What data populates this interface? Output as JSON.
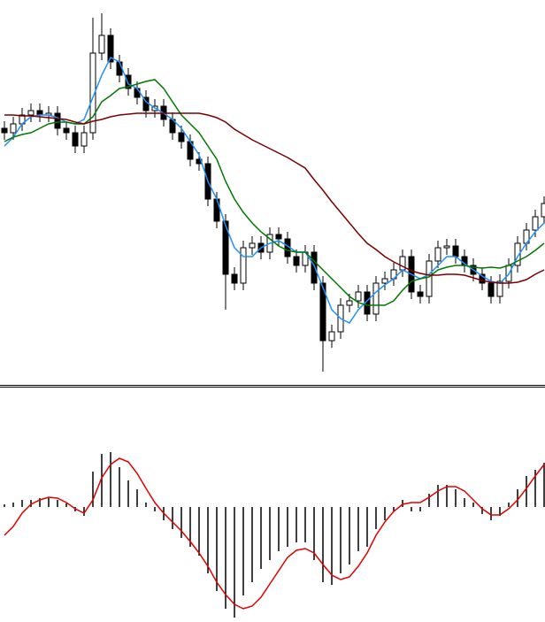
{
  "chart_data": [
    {
      "type": "candlestick",
      "ylim": [
        5,
        440
      ],
      "up_color": "#ffffff",
      "down_color": "#000000",
      "edge_color": "#000000",
      "open": [
        295,
        290,
        300,
        310,
        315,
        310,
        312,
        295,
        290,
        275,
        290,
        380,
        400,
        370,
        355,
        340,
        330,
        315,
        320,
        305,
        290,
        280,
        260,
        255,
        215,
        190,
        130,
        120,
        160,
        165,
        155,
        175,
        170,
        150,
        140,
        155,
        120,
        55,
        65,
        95,
        100,
        110,
        85,
        120,
        125,
        135,
        150,
        110,
        105,
        145,
        160,
        162,
        150,
        140,
        130,
        120,
        105,
        122,
        140,
        165,
        180,
        195
      ],
      "high": [
        303,
        308,
        318,
        323,
        323,
        320,
        320,
        303,
        298,
        298,
        420,
        425,
        408,
        378,
        363,
        348,
        338,
        328,
        328,
        313,
        298,
        288,
        268,
        263,
        223,
        198,
        138,
        168,
        173,
        173,
        183,
        183,
        178,
        158,
        163,
        163,
        128,
        73,
        103,
        108,
        118,
        118,
        128,
        133,
        143,
        158,
        158,
        118,
        153,
        168,
        170,
        170,
        158,
        148,
        138,
        128,
        130,
        148,
        173,
        188,
        203,
        218
      ],
      "low": [
        282,
        282,
        292,
        302,
        302,
        302,
        287,
        282,
        267,
        267,
        282,
        372,
        362,
        347,
        332,
        322,
        307,
        307,
        297,
        282,
        272,
        252,
        247,
        207,
        182,
        90,
        112,
        112,
        152,
        147,
        147,
        162,
        142,
        132,
        132,
        112,
        20,
        47,
        57,
        87,
        92,
        77,
        77,
        112,
        117,
        127,
        102,
        97,
        97,
        137,
        152,
        142,
        132,
        122,
        112,
        97,
        97,
        114,
        132,
        157,
        172,
        187
      ],
      "close": [
        290,
        300,
        310,
        315,
        310,
        312,
        295,
        290,
        275,
        290,
        380,
        400,
        370,
        355,
        340,
        330,
        315,
        320,
        305,
        290,
        280,
        260,
        255,
        215,
        190,
        130,
        120,
        160,
        165,
        155,
        175,
        170,
        150,
        140,
        155,
        120,
        55,
        65,
        95,
        100,
        110,
        85,
        120,
        125,
        135,
        150,
        110,
        105,
        145,
        160,
        162,
        150,
        140,
        130,
        120,
        105,
        122,
        140,
        165,
        180,
        195,
        210
      ],
      "series": [
        {
          "color": "#1e90ff",
          "values": [
            275,
            285,
            300,
            308,
            310,
            310,
            307,
            302,
            300,
            305,
            330,
            355,
            375,
            370,
            345,
            340,
            325,
            318,
            312,
            305,
            295,
            280,
            265,
            235,
            215,
            185,
            160,
            150,
            150,
            160,
            165,
            168,
            162,
            155,
            155,
            140,
            115,
            90,
            80,
            75,
            90,
            100,
            110,
            118,
            125,
            135,
            130,
            125,
            130,
            140,
            150,
            150,
            142,
            135,
            128,
            122,
            120,
            130,
            150,
            165,
            178,
            188
          ]
        },
        {
          "color": "#007800",
          "values": [
            280,
            285,
            288,
            290,
            295,
            300,
            302,
            302,
            300,
            300,
            308,
            325,
            332,
            340,
            342,
            345,
            348,
            350,
            340,
            325,
            310,
            300,
            290,
            275,
            260,
            235,
            215,
            200,
            188,
            178,
            170,
            162,
            157,
            155,
            155,
            145,
            135,
            125,
            115,
            105,
            98,
            95,
            95,
            95,
            100,
            112,
            122,
            125,
            127,
            135,
            138,
            140,
            140,
            138,
            137,
            138,
            137,
            140,
            145,
            150,
            157,
            165
          ]
        },
        {
          "color": "#7a0000",
          "values": [
            310,
            310,
            309,
            309,
            308,
            307,
            306,
            305,
            302,
            300,
            303,
            305,
            308,
            310,
            311,
            312,
            312,
            312,
            312,
            312,
            312,
            312,
            312,
            310,
            307,
            302,
            294,
            288,
            282,
            277,
            272,
            267,
            262,
            256,
            250,
            237,
            225,
            212,
            200,
            188,
            176,
            165,
            158,
            150,
            144,
            139,
            134,
            131,
            129,
            129,
            130,
            130,
            129,
            126,
            123,
            121,
            120,
            120,
            121,
            124,
            130,
            135
          ]
        }
      ]
    },
    {
      "type": "macd",
      "ylim": [
        -130,
        133
      ],
      "color": "#000000",
      "values": [
        3,
        5,
        8,
        8,
        10,
        10,
        8,
        4,
        -5,
        -10,
        40,
        60,
        62,
        45,
        30,
        20,
        5,
        -5,
        -15,
        -25,
        -35,
        -45,
        -55,
        -75,
        -95,
        -115,
        -125,
        -100,
        -85,
        -70,
        -60,
        -50,
        -45,
        -40,
        -40,
        -60,
        -85,
        -88,
        -75,
        -65,
        -50,
        -45,
        -25,
        -15,
        -5,
        8,
        -5,
        -5,
        15,
        25,
        25,
        20,
        10,
        5,
        -8,
        -15,
        -10,
        5,
        20,
        35,
        42,
        50
      ],
      "signal": {
        "color": "#e00000",
        "values": [
          -32,
          -22,
          -7,
          3,
          8,
          11,
          10,
          5,
          -2,
          -7,
          8,
          33,
          48,
          55,
          51,
          38,
          21,
          5,
          -7,
          -17,
          -27,
          -39,
          -52,
          -67,
          -85,
          -99,
          -110,
          -115,
          -112,
          -102,
          -87,
          -72,
          -57,
          -49,
          -47,
          -52,
          -65,
          -77,
          -82,
          -79,
          -67,
          -52,
          -32,
          -17,
          -5,
          3,
          5,
          5,
          11,
          18,
          23,
          23,
          18,
          8,
          -2,
          -9,
          -9,
          -2,
          8,
          21,
          35,
          48
        ]
      }
    }
  ]
}
